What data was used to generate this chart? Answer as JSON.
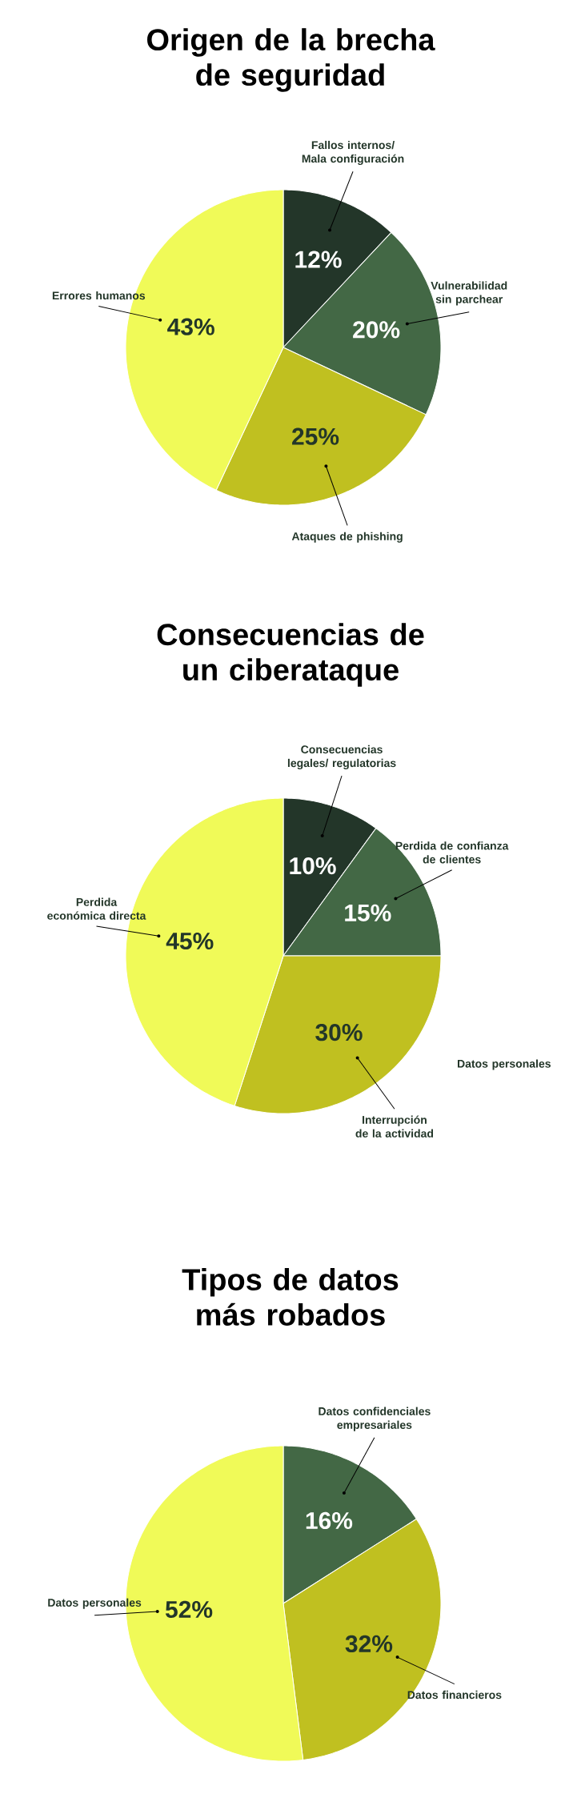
{
  "chart_data": [
    {
      "type": "pie",
      "title": "Origen de la brecha de seguridad",
      "categories": [
        "Fallos internos/ Mala configuración",
        "Vulnerabilidad sin parchear",
        "Ataques de phishing",
        "Errores humanos"
      ],
      "values": [
        12,
        20,
        25,
        43
      ],
      "value_labels": [
        "12%",
        "20%",
        "25%",
        "43%"
      ],
      "colors": [
        "#233629",
        "#436845",
        "#c0c020",
        "#f0fa58"
      ]
    },
    {
      "type": "pie",
      "title": "Consecuencias de un ciberataque",
      "categories": [
        "Consecuencias legales/ regulatorias",
        "Perdida de confianza de clientes",
        "Interrupción de la actividad",
        "Perdida económica directa"
      ],
      "values": [
        10,
        15,
        30,
        45
      ],
      "value_labels": [
        "10%",
        "15%",
        "30%",
        "45%"
      ],
      "colors": [
        "#233629",
        "#436845",
        "#c0c020",
        "#f0fa58"
      ],
      "annotations": [
        "Datos personales"
      ]
    },
    {
      "type": "pie",
      "title": "Tipos de datos más robados",
      "categories": [
        "Datos confidenciales empresariales",
        "Datos financieros",
        "Datos personales"
      ],
      "values": [
        16,
        32,
        52
      ],
      "value_labels": [
        "16%",
        "32%",
        "52%"
      ],
      "colors": [
        "#436845",
        "#c0c020",
        "#f0fa58"
      ]
    }
  ]
}
